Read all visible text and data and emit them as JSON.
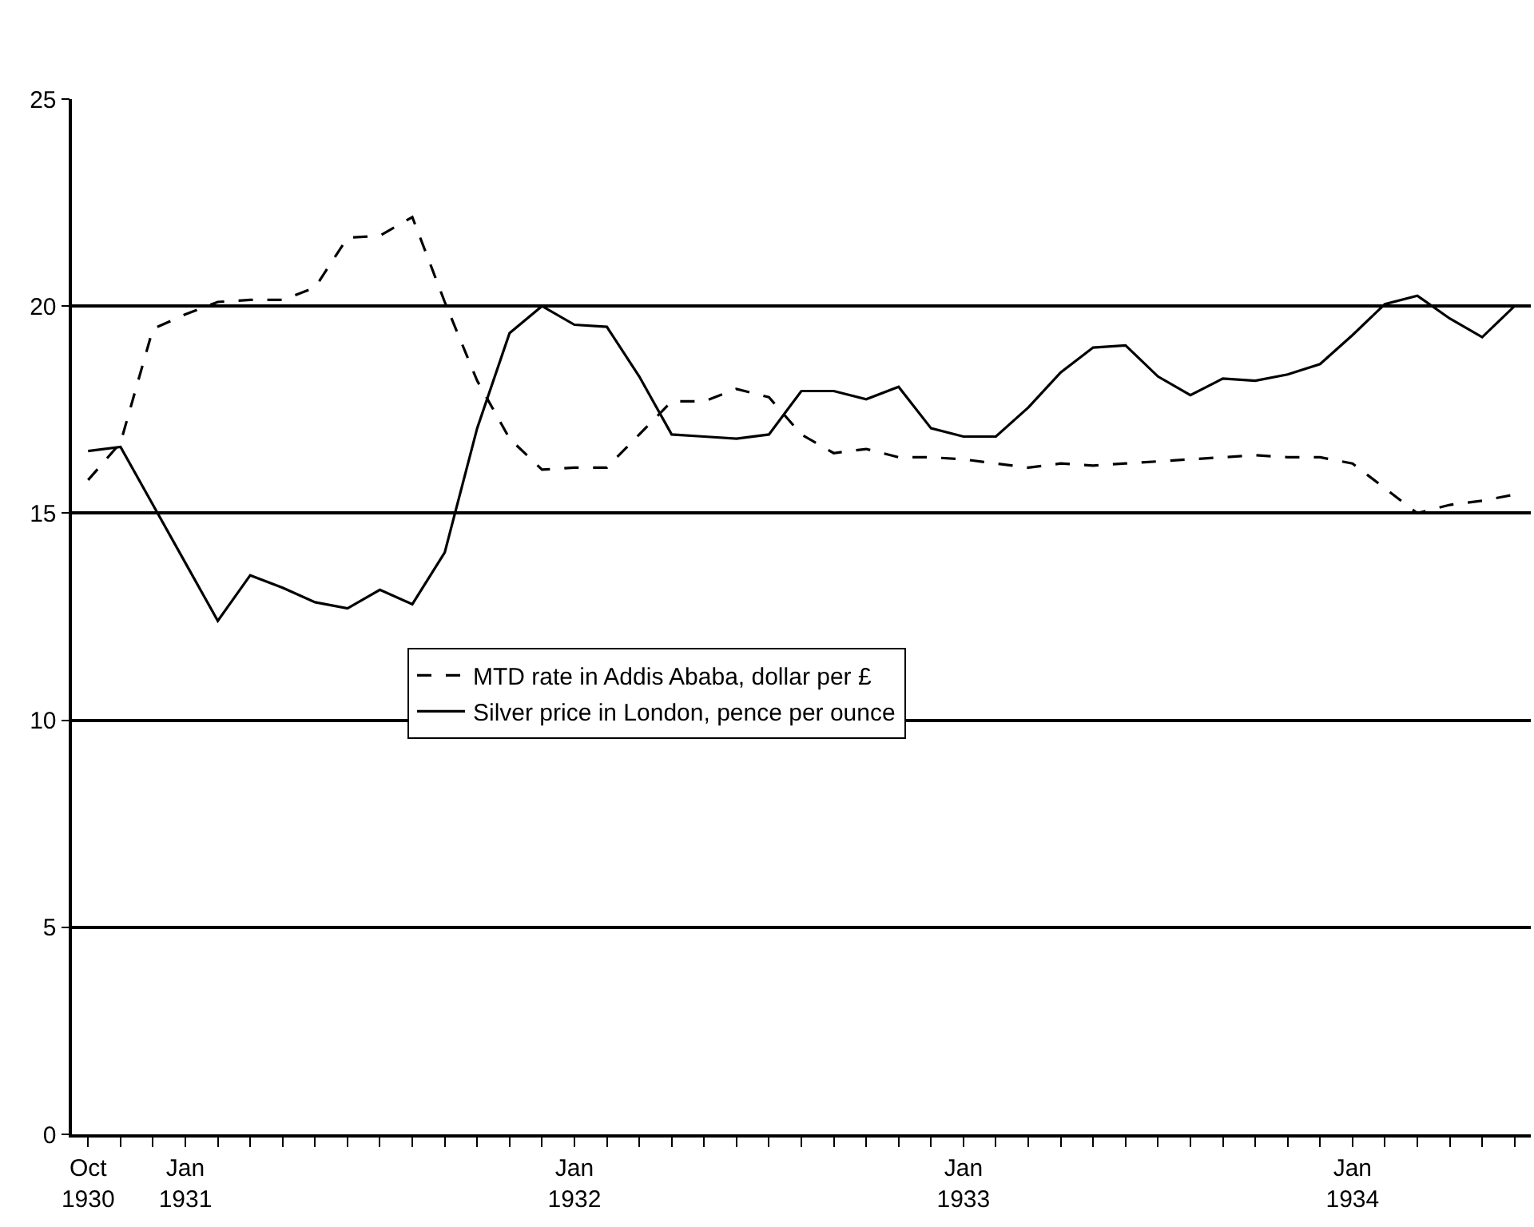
{
  "chart_data": {
    "type": "line",
    "categories": [
      "Oct\n1930",
      null,
      null,
      "Jan\n1931",
      null,
      null,
      null,
      null,
      null,
      null,
      null,
      null,
      null,
      null,
      null,
      "Jan\n1932",
      null,
      null,
      null,
      null,
      null,
      null,
      null,
      null,
      null,
      null,
      null,
      "Jan\n1933",
      null,
      null,
      null,
      null,
      null,
      null,
      null,
      null,
      null,
      null,
      null,
      "Jan\n1934",
      null,
      null,
      null,
      null,
      null
    ],
    "series": [
      {
        "name": "MTD rate in Addis Ababa, dollar per £",
        "color": "#000000",
        "line_style": "dashed",
        "values": [
          15.8,
          16.7,
          19.45,
          19.8,
          20.1,
          20.15,
          20.15,
          20.45,
          21.65,
          21.7,
          22.15,
          20.1,
          18.2,
          16.8,
          16.05,
          16.1,
          16.1,
          16.9,
          17.7,
          17.7,
          18.0,
          17.8,
          16.9,
          16.45,
          16.55,
          16.35,
          16.35,
          16.3,
          16.2,
          16.1,
          16.2,
          16.15,
          16.2,
          16.25,
          16.3,
          16.35,
          16.4,
          16.35,
          16.35,
          16.2,
          15.6,
          15.0,
          15.2,
          15.3,
          15.45
        ]
      },
      {
        "name": "Silver price in London, pence per ounce",
        "color": "#000000",
        "line_style": "solid",
        "values": [
          16.5,
          16.6,
          15.2,
          13.8,
          12.4,
          13.5,
          13.2,
          12.85,
          12.7,
          13.15,
          12.8,
          14.05,
          17.05,
          19.35,
          20.0,
          19.55,
          19.5,
          18.3,
          16.9,
          16.85,
          16.8,
          16.9,
          17.95,
          17.95,
          17.75,
          18.05,
          17.05,
          16.85,
          16.85,
          17.55,
          18.4,
          19.0,
          19.05,
          18.3,
          17.85,
          18.25,
          18.2,
          18.35,
          18.6,
          19.3,
          20.05,
          20.25,
          19.7,
          19.25,
          20.0
        ]
      }
    ],
    "ylim": [
      0,
      25
    ],
    "yticks": [
      0,
      5,
      10,
      15,
      20,
      25
    ],
    "grid": "y",
    "legend": "center left",
    "marker": "none"
  }
}
